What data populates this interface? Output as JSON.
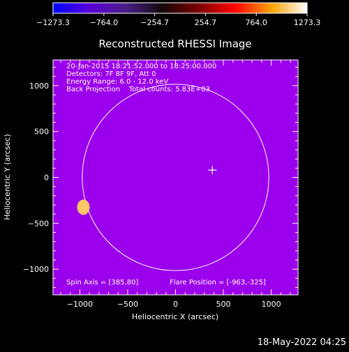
{
  "chart_data": {
    "type": "heatmap",
    "title": "Reconstructed RHESSI Image",
    "xlabel": "Heliocentric X (arcsec)",
    "ylabel": "Heliocentric Y (arcsec)",
    "xlim": [
      -1280,
      1280
    ],
    "ylim": [
      -1280,
      1280
    ],
    "xticks": [
      -1000,
      -500,
      0,
      500,
      1000
    ],
    "xtick_labels": [
      "−1000",
      "−500",
      "0",
      "500",
      "1000"
    ],
    "yticks": [
      1000,
      500,
      0,
      -500,
      -1000
    ],
    "ytick_labels": [
      "1000",
      "500",
      "0",
      "−500",
      "−1000"
    ],
    "colorbar": {
      "min": -1273.3,
      "max": 1273.3,
      "ticks": [
        -1273.3,
        -764.0,
        -254.7,
        254.7,
        764.0,
        1273.3
      ],
      "tick_labels": [
        "−1273.3",
        "−764.0",
        "−254.7",
        "254.7",
        "764.0",
        "1273.3"
      ],
      "stops": [
        "#0000ff",
        "#5a00d8",
        "#4a1e88",
        "#140808",
        "#7a0000",
        "#ff0000",
        "#ffa000",
        "#ffffff"
      ]
    },
    "annotations": [
      "20-Jan-2015 18:21:52.000 to 18:25:00.000",
      "Detectors: 7F 8F 9F, Att 0",
      "Energy Range: 6.0 - 12.0 keV",
      "Back Projection    Total counts: 5.83E+03"
    ],
    "spin_axis_text": "Spin Axis = [385,80]",
    "flare_position_text": "Flare Position = [-963,-325]",
    "solar_disk_radius_arcsec": 975,
    "spin_axis": [
      385,
      80
    ],
    "flare_position": [
      -963,
      -325
    ],
    "grid": false
  },
  "footer_timestamp": "18-May-2022 04:25"
}
